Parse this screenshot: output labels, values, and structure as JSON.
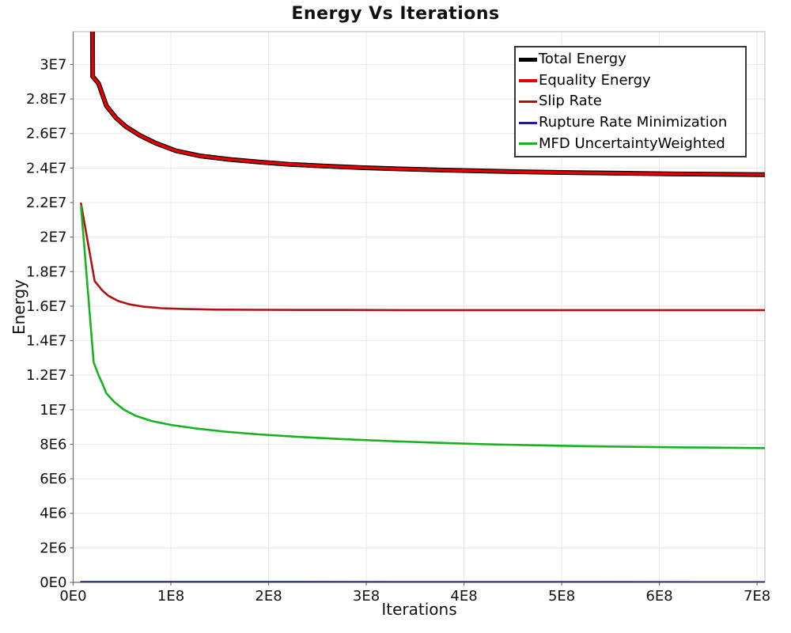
{
  "chart_data": {
    "type": "line",
    "title": "Energy Vs Iterations",
    "xlabel": "Iterations",
    "ylabel": "Energy",
    "x_range": [
      0,
      708000000.0
    ],
    "y_range": [
      0,
      31900000.0
    ],
    "grid": true,
    "legend_position": "top-right",
    "x_ticks": [
      {
        "label": "0E0",
        "value": 0
      },
      {
        "label": "1E8",
        "value": 100000000.0
      },
      {
        "label": "2E8",
        "value": 200000000.0
      },
      {
        "label": "3E8",
        "value": 300000000.0
      },
      {
        "label": "4E8",
        "value": 400000000.0
      },
      {
        "label": "5E8",
        "value": 500000000.0
      },
      {
        "label": "6E8",
        "value": 600000000.0
      },
      {
        "label": "7E8",
        "value": 700000000.0
      }
    ],
    "y_ticks": [
      {
        "label": "0E0",
        "value": 0
      },
      {
        "label": "2E6",
        "value": 2000000.0
      },
      {
        "label": "4E6",
        "value": 4000000.0
      },
      {
        "label": "6E6",
        "value": 6000000.0
      },
      {
        "label": "8E6",
        "value": 8000000.0
      },
      {
        "label": "1E7",
        "value": 10000000.0
      },
      {
        "label": "1.2E7",
        "value": 12000000.0
      },
      {
        "label": "1.4E7",
        "value": 14000000.0
      },
      {
        "label": "1.6E7",
        "value": 16000000.0
      },
      {
        "label": "1.8E7",
        "value": 18000000.0
      },
      {
        "label": "2E7",
        "value": 20000000.0
      },
      {
        "label": "2.2E7",
        "value": 22000000.0
      },
      {
        "label": "2.4E7",
        "value": 24000000.0
      },
      {
        "label": "2.6E7",
        "value": 26000000.0
      },
      {
        "label": "2.8E7",
        "value": 28000000.0
      },
      {
        "label": "3E7",
        "value": 30000000.0
      }
    ],
    "series": [
      {
        "name": "Total Energy",
        "color": "#000000",
        "line_width": 6,
        "points": [
          [
            8000000.0,
            150000000.0
          ],
          [
            20000000.0,
            29300000.0
          ],
          [
            26000000.0,
            28900000.0
          ],
          [
            34000000.0,
            27600000.0
          ],
          [
            44000000.0,
            26900000.0
          ],
          [
            54000000.0,
            26400000.0
          ],
          [
            68000000.0,
            25900000.0
          ],
          [
            84000000.0,
            25450000.0
          ],
          [
            105000000.0,
            25000000.0
          ],
          [
            130000000.0,
            24700000.0
          ],
          [
            160000000.0,
            24500000.0
          ],
          [
            190000000.0,
            24350000.0
          ],
          [
            220000000.0,
            24220000.0
          ],
          [
            255000000.0,
            24120000.0
          ],
          [
            295000000.0,
            24020000.0
          ],
          [
            335000000.0,
            23950000.0
          ],
          [
            380000000.0,
            23880000.0
          ],
          [
            425000000.0,
            23820000.0
          ],
          [
            470000000.0,
            23770000.0
          ],
          [
            515000000.0,
            23730000.0
          ],
          [
            560000000.0,
            23700000.0
          ],
          [
            610000000.0,
            23660000.0
          ],
          [
            660000000.0,
            23640000.0
          ],
          [
            708000000.0,
            23620000.0
          ]
        ]
      },
      {
        "name": "Equality Energy",
        "color": "#E60000",
        "line_width": 3.6,
        "points": [
          [
            8000000.0,
            150000000.0
          ],
          [
            20000000.0,
            29300000.0
          ],
          [
            26000000.0,
            28900000.0
          ],
          [
            34000000.0,
            27600000.0
          ],
          [
            44000000.0,
            26900000.0
          ],
          [
            54000000.0,
            26400000.0
          ],
          [
            68000000.0,
            25900000.0
          ],
          [
            84000000.0,
            25450000.0
          ],
          [
            105000000.0,
            25000000.0
          ],
          [
            130000000.0,
            24700000.0
          ],
          [
            160000000.0,
            24500000.0
          ],
          [
            190000000.0,
            24350000.0
          ],
          [
            220000000.0,
            24220000.0
          ],
          [
            255000000.0,
            24120000.0
          ],
          [
            295000000.0,
            24020000.0
          ],
          [
            335000000.0,
            23950000.0
          ],
          [
            380000000.0,
            23880000.0
          ],
          [
            425000000.0,
            23820000.0
          ],
          [
            470000000.0,
            23770000.0
          ],
          [
            515000000.0,
            23730000.0
          ],
          [
            560000000.0,
            23700000.0
          ],
          [
            610000000.0,
            23660000.0
          ],
          [
            660000000.0,
            23640000.0
          ],
          [
            708000000.0,
            23620000.0
          ]
        ]
      },
      {
        "name": "Slip Rate",
        "color": "#B01212",
        "line_width": 2.6,
        "points": [
          [
            8000000.0,
            21950000.0
          ],
          [
            22000000.0,
            17450000.0
          ],
          [
            30000000.0,
            16900000.0
          ],
          [
            36000000.0,
            16600000.0
          ],
          [
            46000000.0,
            16300000.0
          ],
          [
            58000000.0,
            16100000.0
          ],
          [
            72000000.0,
            15970000.0
          ],
          [
            90000000.0,
            15880000.0
          ],
          [
            115000000.0,
            15830000.0
          ],
          [
            145000000.0,
            15800000.0
          ],
          [
            185000000.0,
            15790000.0
          ],
          [
            230000000.0,
            15780000.0
          ],
          [
            280000000.0,
            15780000.0
          ],
          [
            340000000.0,
            15770000.0
          ],
          [
            420000000.0,
            15770000.0
          ],
          [
            520000000.0,
            15770000.0
          ],
          [
            620000000.0,
            15770000.0
          ],
          [
            708000000.0,
            15770000.0
          ]
        ]
      },
      {
        "name": "Rupture Rate Minimization",
        "color": "#1C1C96",
        "line_width": 2.2,
        "points": [
          [
            8000000.0,
            30000.0
          ],
          [
            708000000.0,
            20000.0
          ]
        ]
      },
      {
        "name": "MFD UncertaintyWeighted",
        "color": "#17B220",
        "line_width": 2.6,
        "points": [
          [
            8000000.0,
            21800000.0
          ],
          [
            21000000.0,
            12750000.0
          ],
          [
            26000000.0,
            12000000.0
          ],
          [
            30000000.0,
            11500000.0
          ],
          [
            34000000.0,
            10950000.0
          ],
          [
            42000000.0,
            10450000.0
          ],
          [
            52000000.0,
            10000000.0
          ],
          [
            64000000.0,
            9650000.0
          ],
          [
            80000000.0,
            9350000.0
          ],
          [
            100000000.0,
            9120000.0
          ],
          [
            125000000.0,
            8920000.0
          ],
          [
            155000000.0,
            8730000.0
          ],
          [
            190000000.0,
            8570000.0
          ],
          [
            230000000.0,
            8430000.0
          ],
          [
            275000000.0,
            8300000.0
          ],
          [
            325000000.0,
            8180000.0
          ],
          [
            375000000.0,
            8080000.0
          ],
          [
            425000000.0,
            8000000.0
          ],
          [
            475000000.0,
            7940000.0
          ],
          [
            525000000.0,
            7890000.0
          ],
          [
            575000000.0,
            7850000.0
          ],
          [
            625000000.0,
            7820000.0
          ],
          [
            665000000.0,
            7800000.0
          ],
          [
            708000000.0,
            7780000.0
          ]
        ]
      }
    ]
  }
}
